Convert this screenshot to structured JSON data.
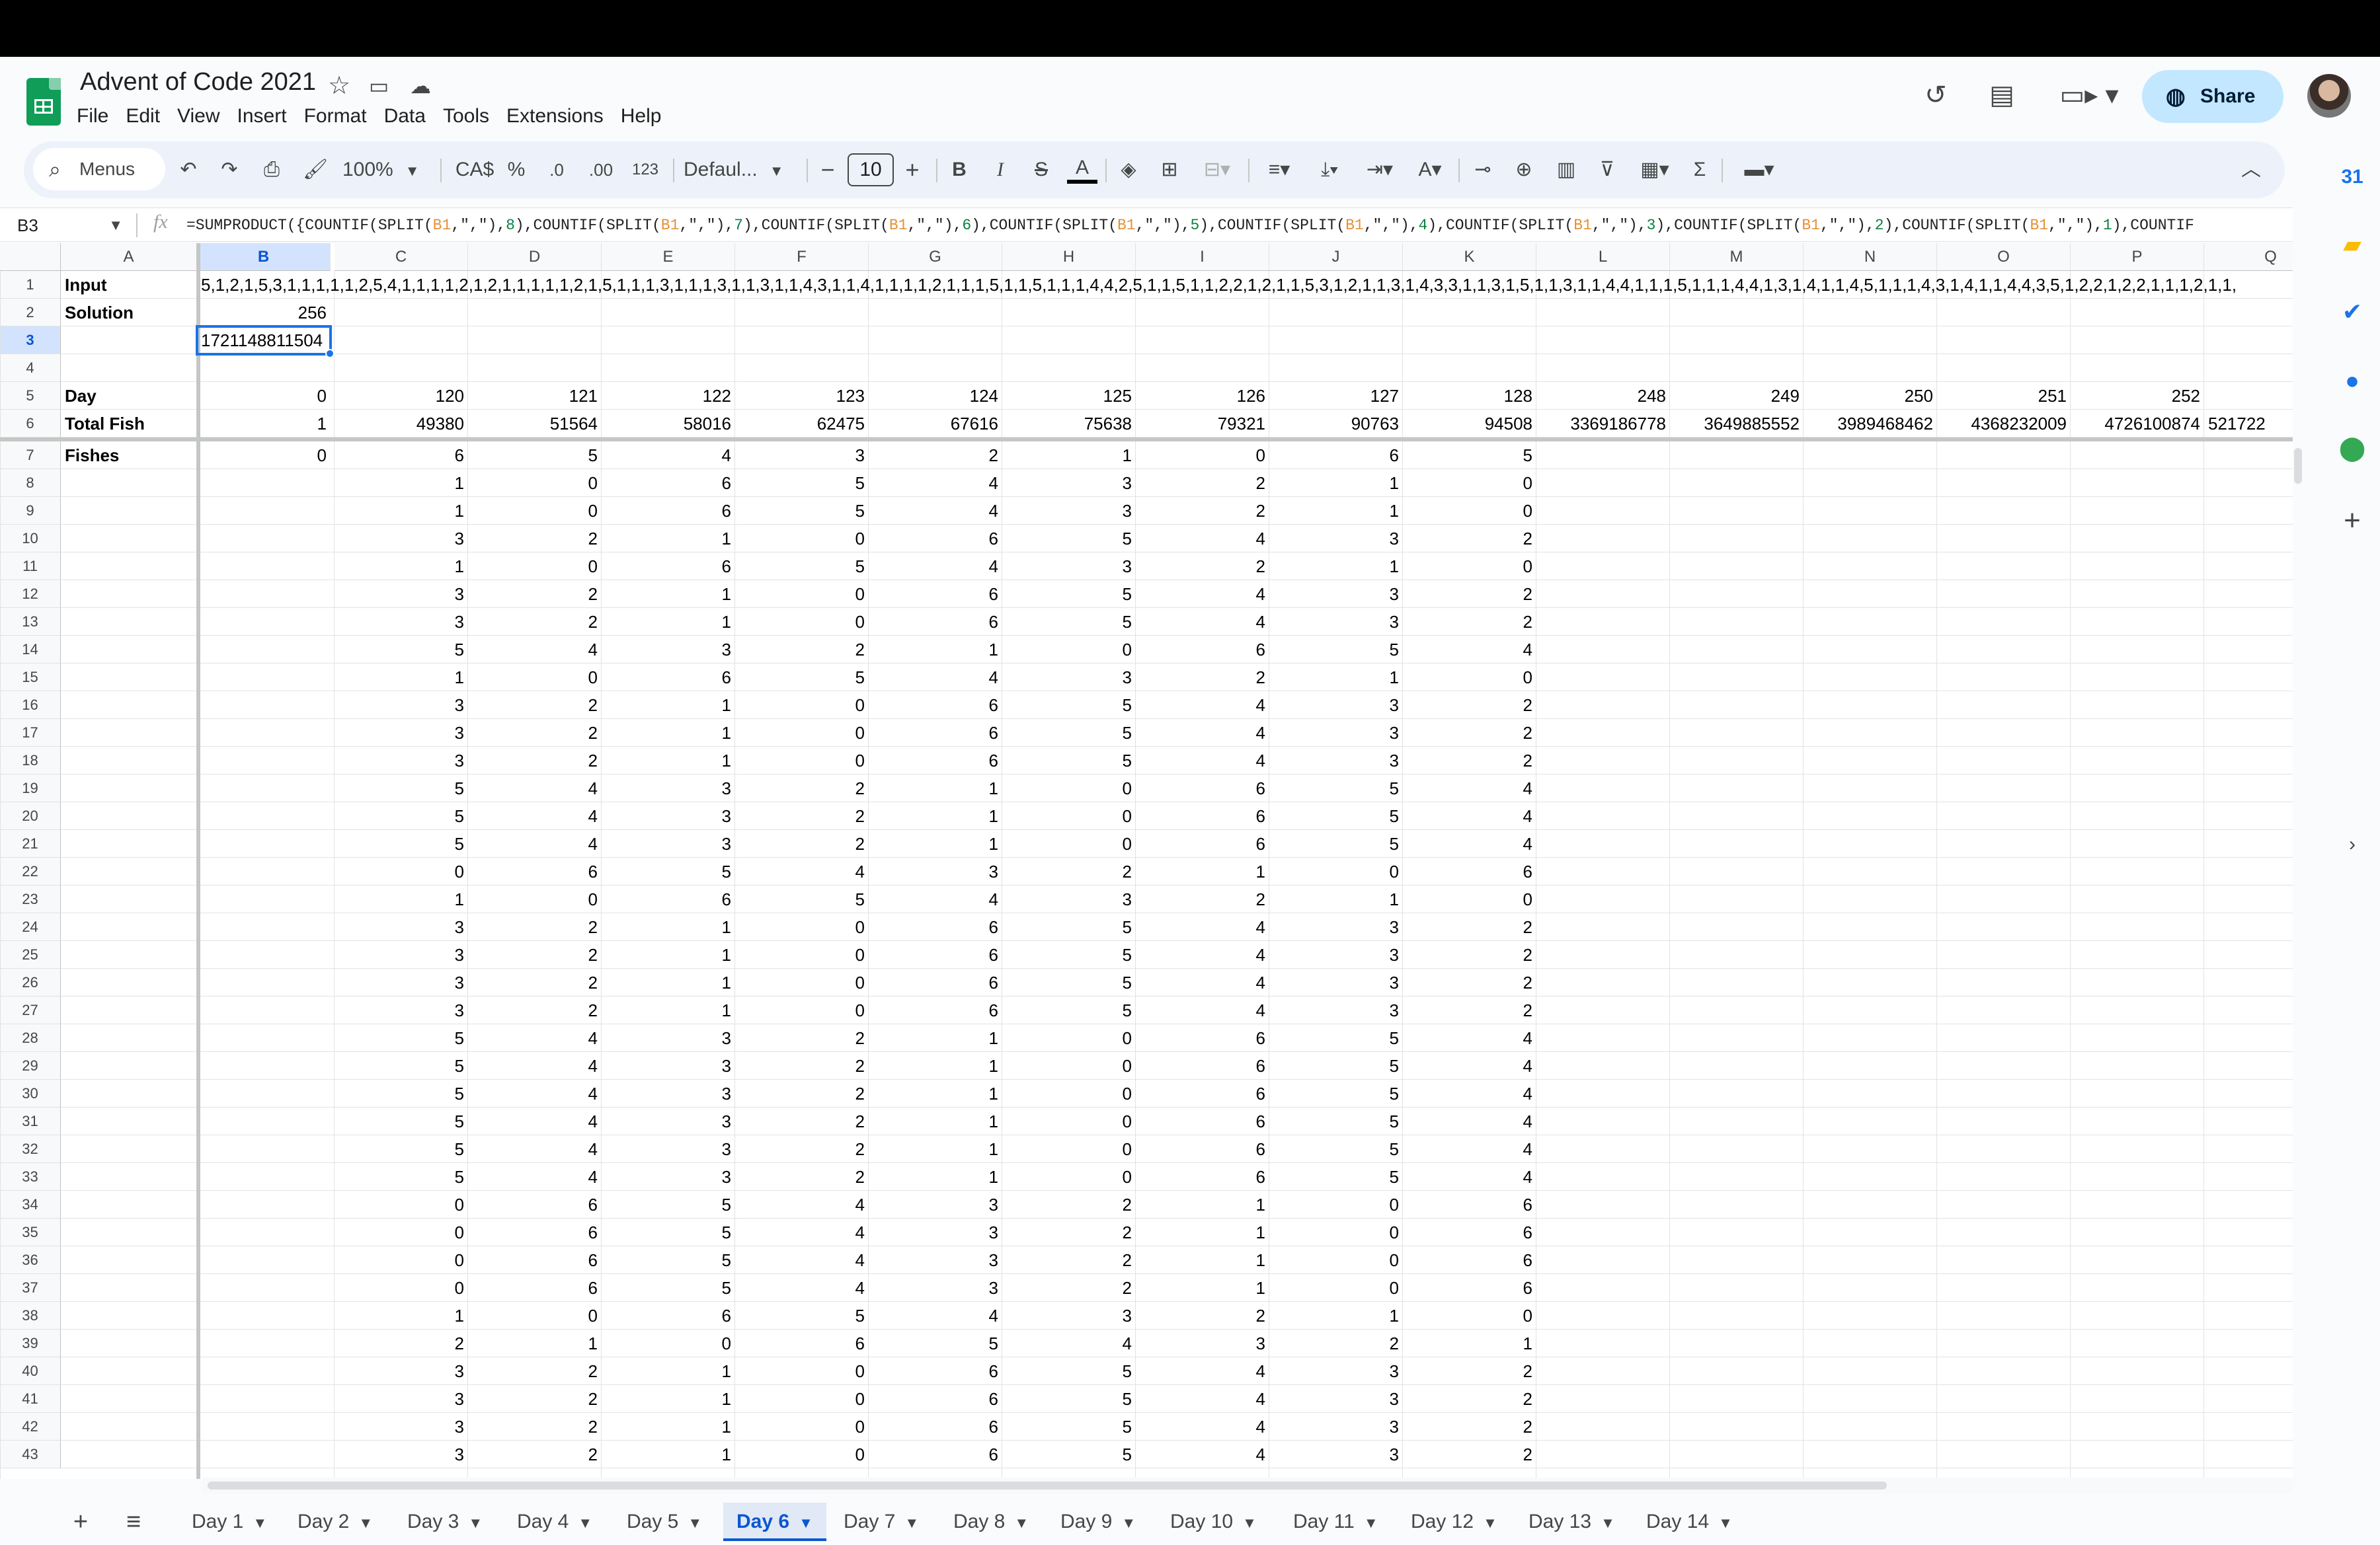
{
  "doc": {
    "title": "Advent of Code 2021"
  },
  "menu": [
    "File",
    "Edit",
    "View",
    "Insert",
    "Format",
    "Data",
    "Tools",
    "Extensions",
    "Help"
  ],
  "share_label": "Share",
  "toolbar": {
    "search_label": "Menus",
    "zoom": "100%",
    "currency": "CA$",
    "percent": "%",
    "decrease_decimal": ".0",
    "increase_decimal": ".00",
    "number_format": "123",
    "font": "Defaul...",
    "font_size": "10"
  },
  "namebox": "B3",
  "formula": "=SUMPRODUCT({COUNTIF(SPLIT(B1,\",\"),8),COUNTIF(SPLIT(B1,\",\"),7),COUNTIF(SPLIT(B1,\",\"),6),COUNTIF(SPLIT(B1,\",\"),5),COUNTIF(SPLIT(B1,\",\"),4),COUNTIF(SPLIT(B1,\",\"),3),COUNTIF(SPLIT(B1,\",\"),2),COUNTIF(SPLIT(B1,\",\"),1),COUNTIF",
  "columns": [
    "A",
    "B",
    "C",
    "D",
    "E",
    "F",
    "G",
    "H",
    "I",
    "J",
    "K",
    "L",
    "M",
    "N",
    "O",
    "P",
    "Q"
  ],
  "grid": {
    "labels": {
      "r1": "Input",
      "r2": "Solution",
      "r5": "Day",
      "r6": "Total Fish",
      "r7": "Fishes"
    },
    "input": "5,1,2,1,5,3,1,1,1,1,1,2,5,4,1,1,1,1,2,1,2,1,1,1,1,1,2,1,5,1,1,1,3,1,1,1,3,1,1,3,1,1,4,3,1,1,4,1,1,1,1,2,1,1,1,5,1,1,5,1,1,1,4,4,2,5,1,1,5,1,1,2,2,1,2,1,1,5,3,1,2,1,1,3,1,4,3,3,1,1,3,1,5,1,1,3,1,1,4,4,1,1,1,5,1,1,1,4,4,1,3,1,4,1,1,4,5,1,1,1,4,3,1,4,1,1,4,4,3,5,1,2,2,1,2,2,1,1,1,2,1,1,",
    "solution": "256",
    "b3": "1721148811504",
    "days": [
      "0",
      "120",
      "121",
      "122",
      "123",
      "124",
      "125",
      "126",
      "127",
      "128",
      "248",
      "249",
      "250",
      "251",
      "252"
    ],
    "totals": [
      "1",
      "49380",
      "51564",
      "58016",
      "62475",
      "67616",
      "75638",
      "79321",
      "90763",
      "94508",
      "3369186778",
      "3649885552",
      "3989468462",
      "4368232009",
      "4726100874",
      "521722"
    ],
    "fishes_b7": "0",
    "fish_rows": [
      [
        "6",
        "5",
        "4",
        "3",
        "2",
        "1",
        "0",
        "6",
        "5"
      ],
      [
        "1",
        "0",
        "6",
        "5",
        "4",
        "3",
        "2",
        "1",
        "0"
      ],
      [
        "1",
        "0",
        "6",
        "5",
        "4",
        "3",
        "2",
        "1",
        "0"
      ],
      [
        "3",
        "2",
        "1",
        "0",
        "6",
        "5",
        "4",
        "3",
        "2"
      ],
      [
        "1",
        "0",
        "6",
        "5",
        "4",
        "3",
        "2",
        "1",
        "0"
      ],
      [
        "3",
        "2",
        "1",
        "0",
        "6",
        "5",
        "4",
        "3",
        "2"
      ],
      [
        "3",
        "2",
        "1",
        "0",
        "6",
        "5",
        "4",
        "3",
        "2"
      ],
      [
        "5",
        "4",
        "3",
        "2",
        "1",
        "0",
        "6",
        "5",
        "4"
      ],
      [
        "1",
        "0",
        "6",
        "5",
        "4",
        "3",
        "2",
        "1",
        "0"
      ],
      [
        "3",
        "2",
        "1",
        "0",
        "6",
        "5",
        "4",
        "3",
        "2"
      ],
      [
        "3",
        "2",
        "1",
        "0",
        "6",
        "5",
        "4",
        "3",
        "2"
      ],
      [
        "3",
        "2",
        "1",
        "0",
        "6",
        "5",
        "4",
        "3",
        "2"
      ],
      [
        "5",
        "4",
        "3",
        "2",
        "1",
        "0",
        "6",
        "5",
        "4"
      ],
      [
        "5",
        "4",
        "3",
        "2",
        "1",
        "0",
        "6",
        "5",
        "4"
      ],
      [
        "5",
        "4",
        "3",
        "2",
        "1",
        "0",
        "6",
        "5",
        "4"
      ],
      [
        "0",
        "6",
        "5",
        "4",
        "3",
        "2",
        "1",
        "0",
        "6"
      ],
      [
        "1",
        "0",
        "6",
        "5",
        "4",
        "3",
        "2",
        "1",
        "0"
      ],
      [
        "3",
        "2",
        "1",
        "0",
        "6",
        "5",
        "4",
        "3",
        "2"
      ],
      [
        "3",
        "2",
        "1",
        "0",
        "6",
        "5",
        "4",
        "3",
        "2"
      ],
      [
        "3",
        "2",
        "1",
        "0",
        "6",
        "5",
        "4",
        "3",
        "2"
      ],
      [
        "3",
        "2",
        "1",
        "0",
        "6",
        "5",
        "4",
        "3",
        "2"
      ],
      [
        "5",
        "4",
        "3",
        "2",
        "1",
        "0",
        "6",
        "5",
        "4"
      ],
      [
        "5",
        "4",
        "3",
        "2",
        "1",
        "0",
        "6",
        "5",
        "4"
      ],
      [
        "5",
        "4",
        "3",
        "2",
        "1",
        "0",
        "6",
        "5",
        "4"
      ],
      [
        "5",
        "4",
        "3",
        "2",
        "1",
        "0",
        "6",
        "5",
        "4"
      ],
      [
        "5",
        "4",
        "3",
        "2",
        "1",
        "0",
        "6",
        "5",
        "4"
      ],
      [
        "5",
        "4",
        "3",
        "2",
        "1",
        "0",
        "6",
        "5",
        "4"
      ],
      [
        "0",
        "6",
        "5",
        "4",
        "3",
        "2",
        "1",
        "0",
        "6"
      ],
      [
        "0",
        "6",
        "5",
        "4",
        "3",
        "2",
        "1",
        "0",
        "6"
      ],
      [
        "0",
        "6",
        "5",
        "4",
        "3",
        "2",
        "1",
        "0",
        "6"
      ],
      [
        "0",
        "6",
        "5",
        "4",
        "3",
        "2",
        "1",
        "0",
        "6"
      ],
      [
        "1",
        "0",
        "6",
        "5",
        "4",
        "3",
        "2",
        "1",
        "0"
      ],
      [
        "2",
        "1",
        "0",
        "6",
        "5",
        "4",
        "3",
        "2",
        "1"
      ],
      [
        "3",
        "2",
        "1",
        "0",
        "6",
        "5",
        "4",
        "3",
        "2"
      ],
      [
        "3",
        "2",
        "1",
        "0",
        "6",
        "5",
        "4",
        "3",
        "2"
      ],
      [
        "3",
        "2",
        "1",
        "0",
        "6",
        "5",
        "4",
        "3",
        "2"
      ],
      [
        "3",
        "2",
        "1",
        "0",
        "6",
        "5",
        "4",
        "3",
        "2"
      ]
    ]
  },
  "tabs": [
    "Day 1",
    "Day 2",
    "Day 3",
    "Day 4",
    "Day 5",
    "Day 6",
    "Day 7",
    "Day 8",
    "Day 9",
    "Day 10",
    "Day 11",
    "Day 12",
    "Day 13",
    "Day 14"
  ],
  "active_tab": "Day 6",
  "colors": {
    "accent": "#1a73e8",
    "share_bg": "#c2e7ff",
    "selected_header": "#d3e3fd",
    "sheets_green": "#0f9d58"
  }
}
